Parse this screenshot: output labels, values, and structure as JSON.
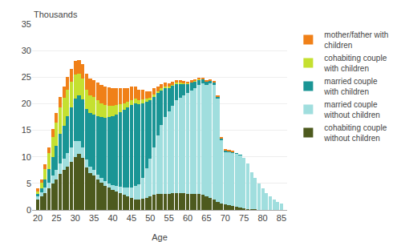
{
  "chart_data": {
    "type": "bar",
    "stacked": true,
    "xlabel": "Age",
    "ylabel": "Thousands",
    "x": [
      20,
      21,
      22,
      23,
      24,
      25,
      26,
      27,
      28,
      29,
      30,
      31,
      32,
      33,
      34,
      35,
      36,
      37,
      38,
      39,
      40,
      41,
      42,
      43,
      44,
      45,
      46,
      47,
      48,
      49,
      50,
      51,
      52,
      53,
      54,
      55,
      56,
      57,
      58,
      59,
      60,
      61,
      62,
      63,
      64,
      65,
      66,
      67,
      68,
      69,
      70,
      71,
      72,
      73,
      74,
      75,
      76,
      77,
      78,
      79,
      80,
      81,
      82,
      83,
      84,
      85
    ],
    "series": [
      {
        "name": "cohabiting couple\nwithout children",
        "color": "#4d5a1e",
        "values": [
          2.0,
          2.5,
          3.2,
          4.0,
          5.0,
          5.8,
          6.8,
          7.5,
          8.2,
          9.0,
          10.0,
          10.5,
          9.8,
          8.0,
          7.0,
          6.5,
          5.8,
          5.2,
          4.6,
          4.2,
          3.8,
          3.5,
          3.2,
          2.8,
          2.5,
          2.2,
          2.0,
          1.9,
          2.1,
          2.3,
          2.6,
          2.8,
          3.0,
          3.0,
          3.0,
          3.0,
          3.1,
          3.1,
          3.1,
          3.1,
          3.0,
          3.0,
          3.0,
          3.0,
          2.8,
          2.5,
          2.3,
          2.0,
          1.5,
          1.2,
          1.0,
          0.9,
          0.8,
          0.6,
          0.5,
          0.3,
          0.2,
          0.1,
          0.1,
          0.0,
          0.0,
          0.0,
          0.0,
          0.0,
          0.0,
          0.0
        ]
      },
      {
        "name": "married couple\nwithout children",
        "color": "#a0dede",
        "values": [
          0.5,
          0.8,
          1.0,
          1.2,
          1.5,
          1.7,
          2.0,
          2.2,
          2.5,
          2.8,
          3.0,
          2.5,
          2.0,
          1.5,
          1.2,
          1.0,
          0.9,
          0.8,
          0.8,
          0.8,
          0.9,
          1.0,
          1.2,
          1.5,
          1.8,
          2.0,
          2.5,
          3.0,
          4.0,
          5.5,
          7.0,
          9.0,
          11.0,
          13.0,
          14.5,
          15.5,
          16.5,
          17.5,
          18.0,
          18.5,
          19.0,
          19.5,
          20.0,
          20.5,
          21.0,
          21.0,
          21.5,
          21.5,
          19.5,
          12.0,
          10.0,
          10.0,
          10.0,
          10.0,
          9.8,
          9.5,
          8.5,
          7.0,
          6.0,
          5.0,
          4.0,
          3.2,
          2.5,
          2.0,
          1.5,
          1.2
        ]
      },
      {
        "name": "married couple\nwith children",
        "color": "#1a9595",
        "values": [
          0.5,
          0.8,
          1.5,
          2.5,
          3.5,
          4.5,
          5.5,
          6.2,
          7.0,
          7.5,
          8.0,
          8.5,
          9.0,
          9.5,
          10.0,
          10.5,
          11.0,
          11.5,
          12.0,
          12.5,
          13.0,
          13.5,
          14.0,
          14.5,
          15.0,
          15.5,
          15.5,
          15.0,
          14.0,
          12.5,
          11.0,
          9.5,
          8.0,
          6.5,
          5.5,
          4.5,
          3.8,
          3.2,
          2.7,
          2.2,
          1.8,
          1.5,
          1.2,
          1.0,
          0.8,
          0.7,
          0.6,
          0.5,
          0.4,
          0.3,
          0.3,
          0.2,
          0.2,
          0.1,
          0.1,
          0.0,
          0.0,
          0.0,
          0.0,
          0.0,
          0.0,
          0.0,
          0.0,
          0.0,
          0.0,
          0.0
        ]
      },
      {
        "name": "cohabiting couple\nwith children",
        "color": "#c5e030",
        "values": [
          0.5,
          1.0,
          2.0,
          3.0,
          3.8,
          4.5,
          5.0,
          5.2,
          5.0,
          4.8,
          4.5,
          4.2,
          4.0,
          3.7,
          3.4,
          3.2,
          2.9,
          2.6,
          2.3,
          2.1,
          1.9,
          1.7,
          1.5,
          1.3,
          1.1,
          1.0,
          0.9,
          0.8,
          0.7,
          0.6,
          0.5,
          0.5,
          0.4,
          0.4,
          0.3,
          0.3,
          0.2,
          0.2,
          0.2,
          0.1,
          0.1,
          0.1,
          0.1,
          0.1,
          0.0,
          0.0,
          0.0,
          0.0,
          0.0,
          0.0,
          0.0,
          0.0,
          0.0,
          0.0,
          0.0,
          0.0,
          0.0,
          0.0,
          0.0,
          0.0,
          0.0,
          0.0,
          0.0,
          0.0,
          0.0,
          0.0
        ]
      },
      {
        "name": "mother/father with\nchildren",
        "color": "#f08018",
        "values": [
          0.5,
          0.7,
          0.9,
          1.1,
          1.4,
          1.7,
          1.9,
          2.1,
          2.3,
          2.5,
          2.5,
          2.5,
          2.7,
          2.9,
          3.1,
          3.3,
          3.4,
          3.5,
          3.5,
          3.5,
          3.3,
          3.2,
          3.0,
          2.8,
          2.6,
          2.5,
          2.3,
          2.0,
          1.8,
          1.5,
          1.3,
          1.1,
          0.9,
          0.8,
          0.7,
          0.6,
          0.5,
          0.5,
          0.4,
          0.4,
          0.3,
          0.3,
          0.2,
          0.2,
          0.2,
          0.2,
          0.2,
          0.2,
          0.2,
          0.2,
          0.1,
          0.1,
          0.1,
          0.0,
          0.0,
          0.0,
          0.0,
          0.0,
          0.0,
          0.0,
          0.0,
          0.0,
          0.0,
          0.0,
          0.0,
          0.0
        ]
      }
    ],
    "xlim": [
      18.5,
      86.5
    ],
    "xticks": [
      20,
      25,
      30,
      35,
      40,
      45,
      50,
      55,
      60,
      65,
      70,
      75,
      80,
      85
    ],
    "ylim": [
      0,
      35
    ],
    "yticks": [
      0,
      5,
      10,
      15,
      20,
      25,
      30,
      35
    ],
    "grid": true,
    "legend": "right"
  }
}
